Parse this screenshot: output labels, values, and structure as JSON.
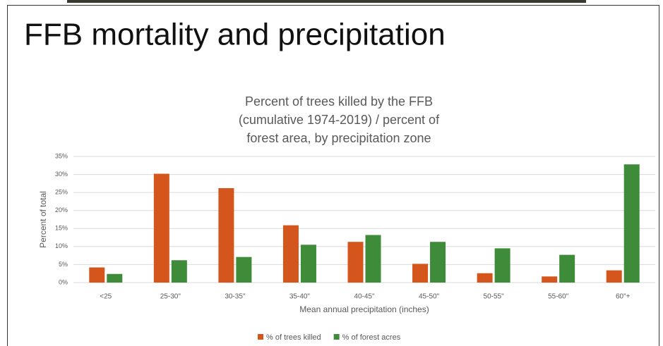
{
  "slide_title": "FFB mortality and precipitation",
  "chart_data": {
    "type": "bar",
    "title": [
      "Percent of trees killed by the FFB",
      "(cumulative 1974-2019) / percent of",
      "forest area, by precipitation zone"
    ],
    "x_label": "Mean annual precipitation (inches)",
    "y_label": "Percent of total",
    "categories": [
      "<25",
      "25-30\"",
      "30-35\"",
      "35-40\"",
      "40-45\"",
      "45-50\"",
      "50-55\"",
      "55-60\"",
      "60\"+"
    ],
    "series": [
      {
        "name": "% of trees killed",
        "color": "#d4561c",
        "values": [
          4.2,
          30.2,
          26.2,
          15.9,
          11.3,
          5.2,
          2.6,
          1.7,
          3.4
        ]
      },
      {
        "name": "% of forest acres",
        "color": "#3e8b3a",
        "values": [
          2.4,
          6.2,
          7.1,
          10.5,
          13.2,
          11.3,
          9.5,
          7.7,
          32.8
        ]
      }
    ],
    "ylim": [
      0,
      35
    ],
    "yticks": [
      {
        "value": 0,
        "label": "0%"
      },
      {
        "value": 5,
        "label": "5%"
      },
      {
        "value": 10,
        "label": "10%"
      },
      {
        "value": 15,
        "label": "15%"
      },
      {
        "value": 20,
        "label": "20%"
      },
      {
        "value": 25,
        "label": "25%"
      },
      {
        "value": 30,
        "label": "30%"
      },
      {
        "value": 35,
        "label": "35%"
      }
    ],
    "grid": true,
    "legend": "bottom"
  }
}
